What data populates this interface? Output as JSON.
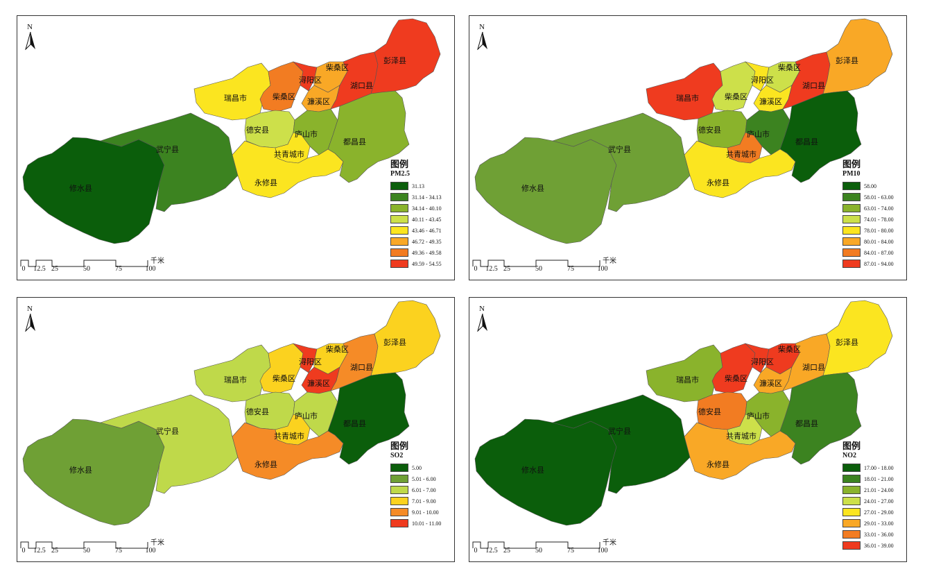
{
  "north_label": "N",
  "scale_bar": {
    "unit": "千米",
    "ticks": [
      "0",
      "12.5",
      "25",
      "50",
      "75",
      "100"
    ]
  },
  "legend_title": "图例",
  "place_names": {
    "xiushui": "修水县",
    "wuning": "武宁县",
    "ruichang": "瑞昌市",
    "chaisang_w": "柴桑区",
    "xunyang": "浔阳区",
    "chaisang_e": "柴桑区",
    "lianxi": "濂溪区",
    "hukou": "湖口县",
    "pengze": "彭泽县",
    "dean": "德安县",
    "lushan": "庐山市",
    "gongqing": "共青城市",
    "duchang": "都昌县",
    "yongxiu": "永修县"
  },
  "maps": [
    {
      "metric": "PM2.5",
      "legend": [
        {
          "range": "31.13",
          "color": "#0b5e0b"
        },
        {
          "range": "31.14 - 34.13",
          "color": "#3c8320"
        },
        {
          "range": "34.14 - 40.10",
          "color": "#8ab32c"
        },
        {
          "range": "40.11 - 43.45",
          "color": "#cde04a"
        },
        {
          "range": "43.46 - 46.71",
          "color": "#fbe520"
        },
        {
          "range": "46.72 - 49.35",
          "color": "#f9a826"
        },
        {
          "range": "49.36 - 49.58",
          "color": "#f27c22"
        },
        {
          "range": "49.59 - 54.55",
          "color": "#ef3b1f"
        }
      ],
      "fills": {
        "xiushui": "#0b5e0b",
        "wuning": "#3c8320",
        "ruichang": "#fbe520",
        "chaisang_w": "#f27c22",
        "xunyang": "#ef3b1f",
        "chaisang_e": "#f9a826",
        "lianxi": "#f9a826",
        "hukou": "#ef3b1f",
        "pengze": "#ef3b1f",
        "dean": "#cde04a",
        "lushan": "#8ab32c",
        "gongqing": "#fbe520",
        "duchang": "#8ab32c",
        "yongxiu": "#fbe520"
      }
    },
    {
      "metric": "PM10",
      "legend": [
        {
          "range": "58.00",
          "color": "#0b5e0b"
        },
        {
          "range": "58.01 - 63.00",
          "color": "#3c8320"
        },
        {
          "range": "63.01 - 74.00",
          "color": "#8ab32c"
        },
        {
          "range": "74.01 - 78.00",
          "color": "#cde04a"
        },
        {
          "range": "78.01 - 80.00",
          "color": "#fbe520"
        },
        {
          "range": "80.01 - 84.00",
          "color": "#f9a826"
        },
        {
          "range": "84.01 - 87.00",
          "color": "#f27c22"
        },
        {
          "range": "87.01 - 94.00",
          "color": "#ef3b1f"
        }
      ],
      "fills": {
        "xiushui": "#6fa035",
        "wuning": "#6fa035",
        "ruichang": "#ef3b1f",
        "chaisang_w": "#cde04a",
        "xunyang": "#fbe520",
        "chaisang_e": "#cde04a",
        "lianxi": "#fbe520",
        "hukou": "#ef3b1f",
        "pengze": "#f9a826",
        "dean": "#8ab32c",
        "lushan": "#3c8320",
        "gongqing": "#f27c22",
        "duchang": "#0b5e0b",
        "yongxiu": "#fbe520"
      }
    },
    {
      "metric": "SO2",
      "legend": [
        {
          "range": "5.00",
          "color": "#0b5e0b"
        },
        {
          "range": "5.01 - 6.00",
          "color": "#6fa035"
        },
        {
          "range": "6.01 - 7.00",
          "color": "#bfd94a"
        },
        {
          "range": "7.01 - 9.00",
          "color": "#fbd21f"
        },
        {
          "range": "9.01 - 10.00",
          "color": "#f58b27"
        },
        {
          "range": "10.01 - 11.00",
          "color": "#ef3b1f"
        }
      ],
      "fills": {
        "xiushui": "#6fa035",
        "wuning": "#bfd94a",
        "ruichang": "#bfd94a",
        "chaisang_w": "#fbd21f",
        "xunyang": "#ef3b1f",
        "chaisang_e": "#fbd21f",
        "lianxi": "#ef3b1f",
        "hukou": "#f58b27",
        "pengze": "#fbd21f",
        "dean": "#bfd94a",
        "lushan": "#bfd94a",
        "gongqing": "#fbd21f",
        "duchang": "#0b5e0b",
        "yongxiu": "#f58b27"
      }
    },
    {
      "metric": "NO2",
      "legend": [
        {
          "range": "17.00 - 18.00",
          "color": "#0b5e0b"
        },
        {
          "range": "18.01 - 21.00",
          "color": "#3c8320"
        },
        {
          "range": "21.01 - 24.00",
          "color": "#8ab32c"
        },
        {
          "range": "24.01 - 27.00",
          "color": "#cde04a"
        },
        {
          "range": "27.01 - 29.00",
          "color": "#fbe520"
        },
        {
          "range": "29.01 - 33.00",
          "color": "#f9a826"
        },
        {
          "range": "33.01 - 36.00",
          "color": "#f27c22"
        },
        {
          "range": "36.01 - 39.00",
          "color": "#ef3b1f"
        }
      ],
      "fills": {
        "xiushui": "#0b5e0b",
        "wuning": "#0b5e0b",
        "ruichang": "#8ab32c",
        "chaisang_w": "#ef3b1f",
        "xunyang": "#ef3b1f",
        "chaisang_e": "#ef3b1f",
        "lianxi": "#f9a826",
        "hukou": "#f9a826",
        "pengze": "#fbe520",
        "dean": "#f27c22",
        "lushan": "#8ab32c",
        "gongqing": "#cde04a",
        "duchang": "#3c8320",
        "yongxiu": "#f9a826"
      }
    }
  ]
}
